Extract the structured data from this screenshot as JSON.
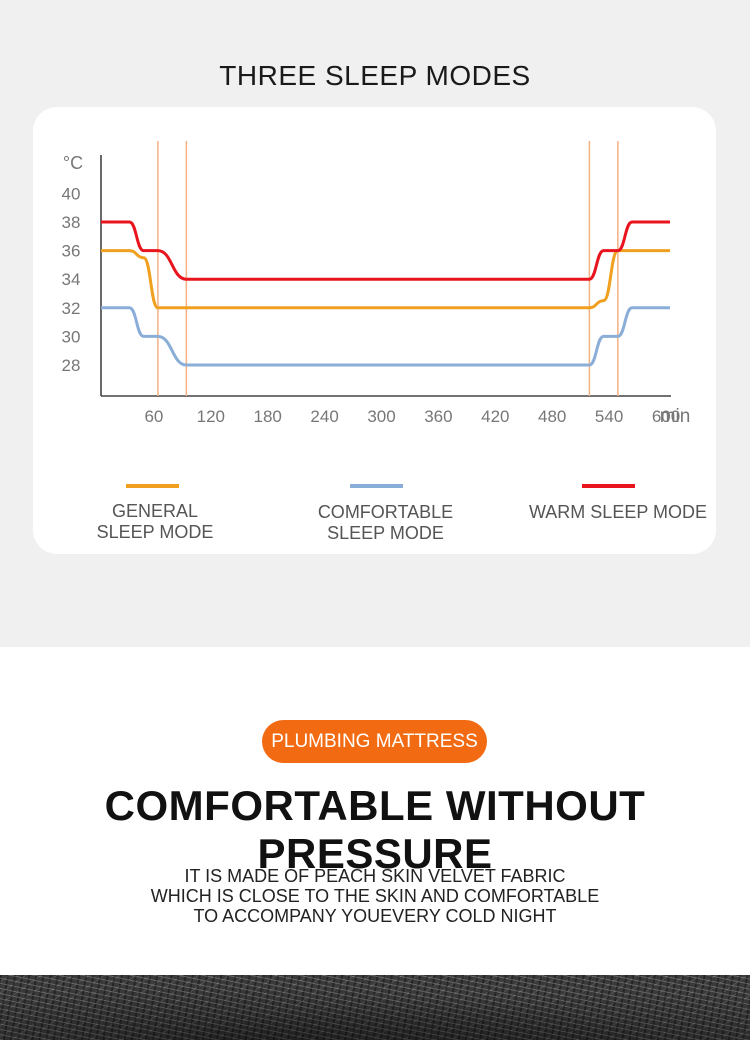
{
  "chart_data": {
    "type": "line",
    "title": "THREE SLEEP MODES",
    "ylabel": "°C",
    "xlabel": "min",
    "ylim": [
      26,
      42
    ],
    "xlim": [
      0,
      600
    ],
    "yticks": [
      28,
      30,
      32,
      34,
      36,
      38,
      40
    ],
    "xticks": [
      60,
      120,
      180,
      240,
      300,
      360,
      420,
      480,
      540,
      600
    ],
    "vlines": [
      60,
      90,
      515,
      545
    ],
    "series": [
      {
        "name": "GENERAL\nSLEEP MODE",
        "color": "#f0a01e",
        "points": [
          [
            0,
            36
          ],
          [
            30,
            36
          ],
          [
            45,
            35.5
          ],
          [
            60,
            32
          ],
          [
            515,
            32
          ],
          [
            530,
            32.5
          ],
          [
            545,
            36
          ],
          [
            600,
            36
          ]
        ]
      },
      {
        "name": "COMFORTABLE\nSLEEP MODE",
        "color": "#8aaed8",
        "points": [
          [
            0,
            32
          ],
          [
            30,
            32
          ],
          [
            45,
            30
          ],
          [
            60,
            30
          ],
          [
            90,
            28
          ],
          [
            515,
            28
          ],
          [
            530,
            30
          ],
          [
            545,
            30
          ],
          [
            560,
            32
          ],
          [
            600,
            32
          ]
        ]
      },
      {
        "name": "WARM SLEEP MODE",
        "color": "#e8141e",
        "points": [
          [
            0,
            38
          ],
          [
            30,
            38
          ],
          [
            45,
            36
          ],
          [
            60,
            36
          ],
          [
            90,
            34
          ],
          [
            515,
            34
          ],
          [
            530,
            36
          ],
          [
            545,
            36
          ],
          [
            560,
            38
          ],
          [
            600,
            38
          ]
        ]
      }
    ]
  },
  "badge": "PLUMBING MATTRESS",
  "headline": "COMFORTABLE WITHOUT PRESSURE",
  "description": [
    "IT IS MADE OF PEACH SKIN VELVET FABRIC",
    "WHICH IS CLOSE TO THE SKIN AND COMFORTABLE",
    "TO ACCOMPANY YOUEVERY COLD NIGHT"
  ]
}
